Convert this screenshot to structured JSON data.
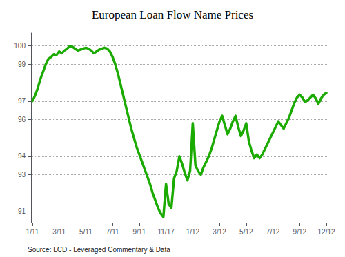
{
  "chart_data": {
    "type": "line",
    "title": "European Loan Flow Name Prices",
    "source": "Source: LCD - Leveraged Commentary & Data",
    "color": "#1aaa00",
    "grid": "y",
    "xlim": [
      -0.5,
      110.5
    ],
    "xticks": [
      {
        "value": 0,
        "label": "1/11"
      },
      {
        "value": 10,
        "label": "3/11"
      },
      {
        "value": 20,
        "label": "5/11"
      },
      {
        "value": 30,
        "label": "7/11"
      },
      {
        "value": 40,
        "label": "9/11"
      },
      {
        "value": 50,
        "label": "11/17"
      },
      {
        "value": 60,
        "label": "1/12"
      },
      {
        "value": 70,
        "label": "3/12"
      },
      {
        "value": 80,
        "label": "5/12"
      },
      {
        "value": 90,
        "label": "7/12"
      },
      {
        "value": 100,
        "label": "9/12"
      },
      {
        "value": 110,
        "label": "12/12"
      }
    ],
    "ylim": [
      90.4,
      100.7
    ],
    "yticks": [
      91,
      93,
      94,
      96,
      97,
      99,
      100
    ],
    "x": [
      0,
      1,
      2,
      3,
      4,
      5,
      6,
      7,
      8,
      9,
      10,
      11,
      12,
      13,
      14,
      15,
      16,
      17,
      18,
      19,
      20,
      21,
      22,
      23,
      24,
      25,
      26,
      27,
      28,
      29,
      30,
      31,
      32,
      33,
      34,
      35,
      36,
      37,
      38,
      39,
      40,
      41,
      42,
      43,
      44,
      45,
      46,
      47,
      48,
      49,
      50,
      51,
      52,
      53,
      54,
      55,
      56,
      57,
      58,
      59,
      60,
      61,
      62,
      63,
      64,
      65,
      66,
      67,
      68,
      69,
      70,
      71,
      72,
      73,
      74,
      75,
      76,
      77,
      78,
      79,
      80,
      81,
      82,
      83,
      84,
      85,
      86,
      87,
      88,
      89,
      90,
      91,
      92,
      93,
      94,
      95,
      96,
      97,
      98,
      99,
      100,
      101,
      102,
      103,
      104,
      105,
      106,
      107,
      108,
      109,
      110
    ],
    "values": [
      97.0,
      97.3,
      97.7,
      98.2,
      98.6,
      99.0,
      99.3,
      99.4,
      99.55,
      99.5,
      99.7,
      99.6,
      99.75,
      99.85,
      100.0,
      99.95,
      99.85,
      99.75,
      99.8,
      99.85,
      99.9,
      99.85,
      99.75,
      99.6,
      99.7,
      99.8,
      99.85,
      99.9,
      99.85,
      99.7,
      99.4,
      99.0,
      98.5,
      97.9,
      97.3,
      96.7,
      96.1,
      95.5,
      95.0,
      94.5,
      94.1,
      93.7,
      93.3,
      92.9,
      92.5,
      92.0,
      91.6,
      91.2,
      90.9,
      90.7,
      92.5,
      91.4,
      91.2,
      92.8,
      93.2,
      94.0,
      93.6,
      93.1,
      92.7,
      93.2,
      95.8,
      93.5,
      93.2,
      93.0,
      93.4,
      93.7,
      94.0,
      94.4,
      94.9,
      95.4,
      95.9,
      96.2,
      95.7,
      95.2,
      95.5,
      95.9,
      96.2,
      95.6,
      95.1,
      95.4,
      95.8,
      94.8,
      94.3,
      93.9,
      94.1,
      93.9,
      94.1,
      94.4,
      94.7,
      95.0,
      95.3,
      95.6,
      95.9,
      95.7,
      95.5,
      95.8,
      96.1,
      96.5,
      96.9,
      97.2,
      97.35,
      97.2,
      96.95,
      97.05,
      97.2,
      97.35,
      97.15,
      96.85,
      97.15,
      97.35,
      97.45
    ]
  }
}
